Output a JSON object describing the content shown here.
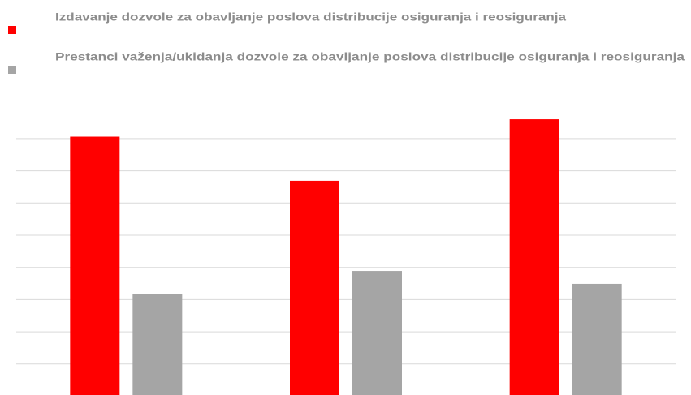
{
  "chart_data": {
    "type": "bar",
    "categories": [
      null,
      null,
      null
    ],
    "series": [
      {
        "name": "Izdavanje dozvole za obavljanje poslova distribucije osiguranja i reosiguranja",
        "color": "#ff0000",
        "values": [
          8.06,
          6.69,
          8.6
        ]
      },
      {
        "name": "Prestanci važenja/ukidanja dozvole za obavljanje poslova distribucije osiguranja i reosiguranja",
        "color": "#a5a5a5",
        "values": [
          3.17,
          3.89,
          3.49
        ]
      }
    ],
    "ylim": [
      0,
      9
    ],
    "yticks": [
      1,
      2,
      3,
      4,
      5,
      6,
      7,
      8
    ],
    "grid": true,
    "legend": "top"
  }
}
